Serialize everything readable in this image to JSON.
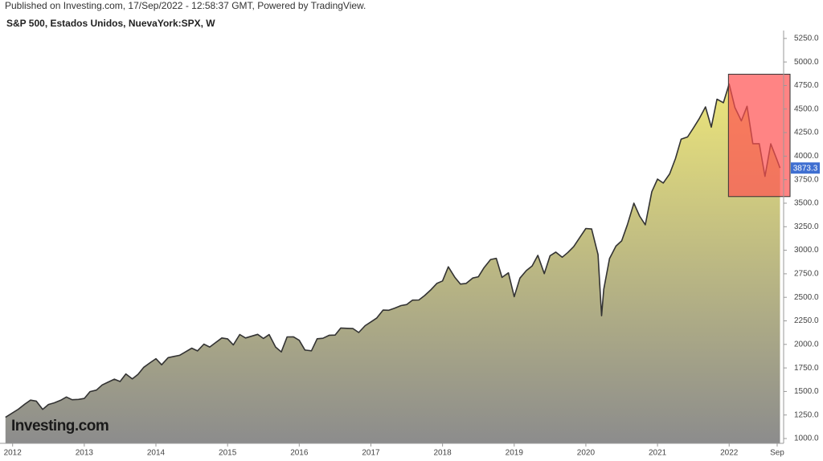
{
  "chart_data": {
    "type": "area",
    "published": "Published on Investing.com, 17/Sep/2022 - 12:58:37 GMT, Powered by TradingView.",
    "title": "S&P 500, Estados Unidos, NuevaYork:SPX, W",
    "watermark": "Investing.com",
    "line_color": "#333333",
    "fill_top": "#ece57a",
    "fill_bottom": "#8c8c8c",
    "last_label_color": "#3f6fd1",
    "highlight": {
      "xlim": [
        2021.99,
        2022.85
      ],
      "ylim": [
        3570,
        4870
      ],
      "color": "#ff5050"
    },
    "xlim": [
      2011.88,
      2022.76
    ],
    "ylim": [
      949,
      5300
    ],
    "xticks": [
      2012,
      2013,
      2014,
      2015,
      2016,
      2017,
      2018,
      2019,
      2020,
      2021,
      2022,
      {
        "value": 2022.67,
        "label": "Sep"
      }
    ],
    "yticks": [
      {
        "value": 1000,
        "label": "1000.0"
      },
      {
        "value": 1250,
        "label": "1250.0"
      },
      {
        "value": 1500,
        "label": "1500.0"
      },
      {
        "value": 1750,
        "label": "1750.0"
      },
      {
        "value": 2000,
        "label": "2000.0"
      },
      {
        "value": 2250,
        "label": "2250.0"
      },
      {
        "value": 2500,
        "label": "2500.0"
      },
      {
        "value": 2750,
        "label": "2750.0"
      },
      {
        "value": 3000,
        "label": "3000.0"
      },
      {
        "value": 3250,
        "label": "3250.0"
      },
      {
        "value": 3500,
        "label": "3500.0"
      },
      {
        "value": 3750,
        "label": "3750.0"
      },
      {
        "value": 4000,
        "label": "4000.0"
      },
      {
        "value": 4250,
        "label": "4250.0"
      },
      {
        "value": 4500,
        "label": "4500.0"
      },
      {
        "value": 4750,
        "label": "4750.0"
      },
      {
        "value": 5000,
        "label": "5000.0"
      },
      {
        "value": 5250,
        "label": "5250.0"
      }
    ],
    "x": [
      2011.9,
      2012.08,
      2012.17,
      2012.25,
      2012.33,
      2012.42,
      2012.5,
      2012.58,
      2012.67,
      2012.75,
      2012.83,
      2012.92,
      2013.0,
      2013.08,
      2013.17,
      2013.25,
      2013.33,
      2013.42,
      2013.5,
      2013.58,
      2013.67,
      2013.75,
      2013.83,
      2013.92,
      2014.0,
      2014.08,
      2014.17,
      2014.25,
      2014.33,
      2014.42,
      2014.5,
      2014.58,
      2014.67,
      2014.75,
      2014.83,
      2014.92,
      2015.0,
      2015.08,
      2015.17,
      2015.25,
      2015.33,
      2015.42,
      2015.5,
      2015.58,
      2015.67,
      2015.75,
      2015.83,
      2015.92,
      2016.0,
      2016.08,
      2016.17,
      2016.25,
      2016.33,
      2016.42,
      2016.5,
      2016.58,
      2016.67,
      2016.75,
      2016.83,
      2016.92,
      2017.0,
      2017.08,
      2017.17,
      2017.25,
      2017.33,
      2017.42,
      2017.5,
      2017.58,
      2017.67,
      2017.75,
      2017.83,
      2017.92,
      2018.0,
      2018.08,
      2018.17,
      2018.25,
      2018.33,
      2018.42,
      2018.5,
      2018.58,
      2018.67,
      2018.75,
      2018.83,
      2018.92,
      2019.0,
      2019.08,
      2019.17,
      2019.25,
      2019.33,
      2019.42,
      2019.5,
      2019.58,
      2019.67,
      2019.75,
      2019.83,
      2019.92,
      2020.0,
      2020.08,
      2020.17,
      2020.22,
      2020.25,
      2020.33,
      2020.42,
      2020.5,
      2020.58,
      2020.67,
      2020.75,
      2020.83,
      2020.92,
      2021.0,
      2021.08,
      2021.17,
      2021.25,
      2021.33,
      2021.42,
      2021.5,
      2021.58,
      2021.67,
      2021.75,
      2021.83,
      2021.92,
      2022.0,
      2022.08,
      2022.17,
      2022.25,
      2022.33,
      2022.42,
      2022.5,
      2022.58,
      2022.67,
      2022.71
    ],
    "series": [
      {
        "name": "S&P 500",
        "values": [
          1225,
          1312,
          1366,
          1408,
          1398,
          1310,
          1362,
          1379,
          1406,
          1441,
          1412,
          1416,
          1426,
          1498,
          1515,
          1569,
          1598,
          1631,
          1606,
          1686,
          1633,
          1682,
          1757,
          1806,
          1848,
          1783,
          1859,
          1872,
          1884,
          1924,
          1960,
          1931,
          2003,
          1972,
          2018,
          2068,
          2059,
          1995,
          2105,
          2068,
          2086,
          2107,
          2063,
          2104,
          1972,
          1920,
          2079,
          2080,
          2044,
          1940,
          1932,
          2060,
          2065,
          2097,
          2099,
          2174,
          2171,
          2168,
          2126,
          2199,
          2239,
          2279,
          2364,
          2363,
          2384,
          2412,
          2423,
          2470,
          2472,
          2519,
          2575,
          2648,
          2674,
          2824,
          2714,
          2641,
          2648,
          2705,
          2718,
          2816,
          2902,
          2914,
          2712,
          2760,
          2507,
          2704,
          2784,
          2834,
          2946,
          2752,
          2942,
          2980,
          2926,
          2977,
          3038,
          3141,
          3231,
          3226,
          2954,
          2305,
          2585,
          2912,
          3044,
          3100,
          3271,
          3500,
          3363,
          3270,
          3622,
          3756,
          3714,
          3811,
          3973,
          4181,
          4204,
          4298,
          4395,
          4523,
          4308,
          4605,
          4567,
          4766,
          4516,
          4374,
          4530,
          4132,
          4132,
          3785,
          4130,
          3955,
          3873.3
        ]
      }
    ]
  }
}
